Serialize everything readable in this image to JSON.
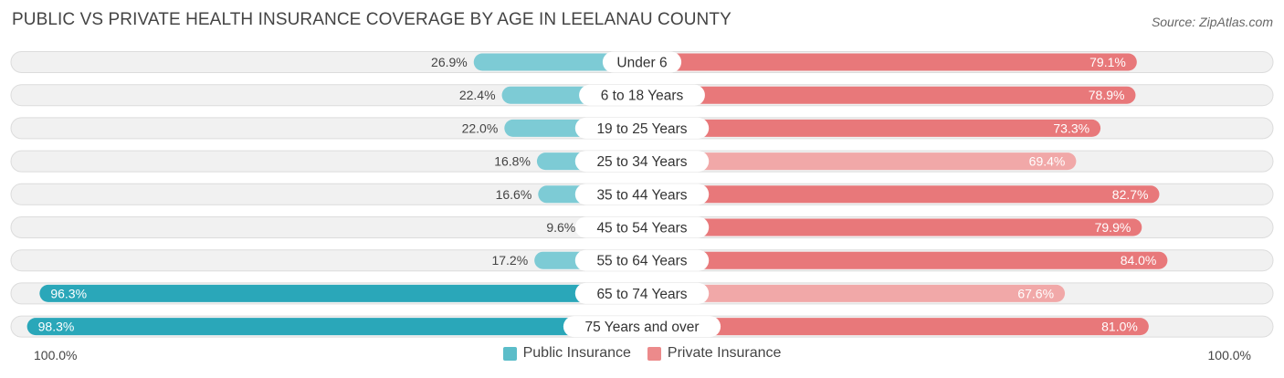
{
  "header": {
    "title": "PUBLIC VS PRIVATE HEALTH INSURANCE COVERAGE BY AGE IN LEELANAU COUNTY",
    "source": "Source: ZipAtlas.com"
  },
  "axis": {
    "left_label": "100.0%",
    "right_label": "100.0%"
  },
  "colors": {
    "public": "#2aa7b9",
    "public_light": "#7dcbd5",
    "private": "#e8787a",
    "private_light": "#f1a8a8",
    "track": "#f1f1f1"
  },
  "legend": [
    {
      "label": "Public Insurance",
      "color": "#5bbdc9"
    },
    {
      "label": "Private Insurance",
      "color": "#ec8a8b"
    }
  ],
  "chart_data": {
    "type": "bar",
    "orientation": "horizontal-diverging",
    "title": "PUBLIC VS PRIVATE HEALTH INSURANCE COVERAGE BY AGE IN LEELANAU COUNTY",
    "xlim": [
      -100,
      100
    ],
    "categories": [
      "Under 6",
      "6 to 18 Years",
      "19 to 25 Years",
      "25 to 34 Years",
      "35 to 44 Years",
      "45 to 54 Years",
      "55 to 64 Years",
      "65 to 74 Years",
      "75 Years and over"
    ],
    "series": [
      {
        "name": "Public Insurance",
        "values": [
          26.9,
          22.4,
          22.0,
          16.8,
          16.6,
          9.6,
          17.2,
          96.3,
          98.3
        ],
        "labels": [
          "26.9%",
          "22.4%",
          "22.0%",
          "16.8%",
          "16.6%",
          "9.6%",
          "17.2%",
          "96.3%",
          "98.3%"
        ]
      },
      {
        "name": "Private Insurance",
        "values": [
          79.1,
          78.9,
          73.3,
          69.4,
          82.7,
          79.9,
          84.0,
          67.6,
          81.0
        ],
        "labels": [
          "79.1%",
          "78.9%",
          "73.3%",
          "69.4%",
          "82.7%",
          "79.9%",
          "84.0%",
          "67.6%",
          "81.0%"
        ]
      }
    ],
    "legend_position": "bottom-center"
  }
}
